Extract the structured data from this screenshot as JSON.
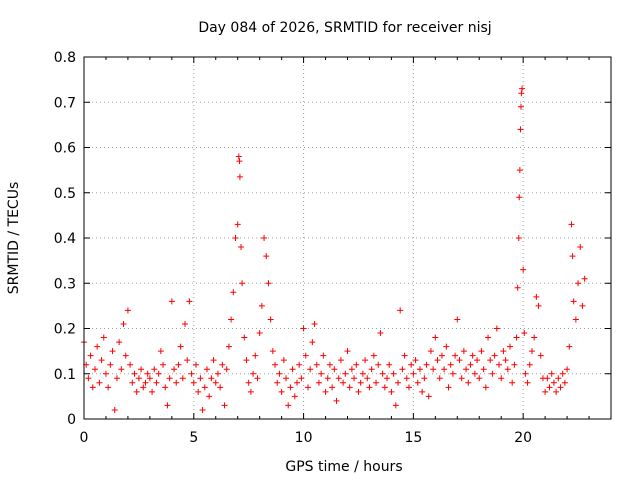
{
  "chart_data": {
    "type": "scatter",
    "title": "Day 084 of 2026, SRMTID for receiver nisj",
    "xlabel": "GPS time / hours",
    "ylabel": "SRMTID / TECUs",
    "xlim": [
      0,
      24
    ],
    "ylim": [
      0,
      0.8
    ],
    "x_ticks": [
      0,
      5,
      10,
      15,
      20
    ],
    "x_tick_labels": [
      "0",
      "5",
      "10",
      "15",
      "20"
    ],
    "y_ticks": [
      0,
      0.1,
      0.2,
      0.3,
      0.4,
      0.5,
      0.6,
      0.7,
      0.8
    ],
    "y_tick_labels": [
      "0",
      "0.1",
      "0.2",
      "0.3",
      "0.4",
      "0.5",
      "0.6",
      "0.7",
      "0.8"
    ],
    "grid": true,
    "marker": "plus",
    "marker_color": "#ff0000",
    "series": [
      {
        "name": "SRMTID",
        "points": [
          [
            0.0,
            0.17
          ],
          [
            0.1,
            0.12
          ],
          [
            0.2,
            0.09
          ],
          [
            0.3,
            0.14
          ],
          [
            0.4,
            0.07
          ],
          [
            0.5,
            0.11
          ],
          [
            0.6,
            0.16
          ],
          [
            0.7,
            0.08
          ],
          [
            0.8,
            0.13
          ],
          [
            0.9,
            0.18
          ],
          [
            1.0,
            0.1
          ],
          [
            1.1,
            0.07
          ],
          [
            1.2,
            0.12
          ],
          [
            1.3,
            0.15
          ],
          [
            1.4,
            0.02
          ],
          [
            1.5,
            0.09
          ],
          [
            1.6,
            0.17
          ],
          [
            1.7,
            0.11
          ],
          [
            1.8,
            0.21
          ],
          [
            1.9,
            0.14
          ],
          [
            2.0,
            0.24
          ],
          [
            2.1,
            0.12
          ],
          [
            2.2,
            0.08
          ],
          [
            2.3,
            0.1
          ],
          [
            2.4,
            0.06
          ],
          [
            2.5,
            0.09
          ],
          [
            2.6,
            0.11
          ],
          [
            2.7,
            0.07
          ],
          [
            2.8,
            0.08
          ],
          [
            2.9,
            0.1
          ],
          [
            3.0,
            0.09
          ],
          [
            3.1,
            0.06
          ],
          [
            3.2,
            0.11
          ],
          [
            3.3,
            0.08
          ],
          [
            3.4,
            0.1
          ],
          [
            3.5,
            0.15
          ],
          [
            3.6,
            0.12
          ],
          [
            3.7,
            0.07
          ],
          [
            3.8,
            0.03
          ],
          [
            3.9,
            0.09
          ],
          [
            4.0,
            0.26
          ],
          [
            4.1,
            0.11
          ],
          [
            4.2,
            0.08
          ],
          [
            4.3,
            0.12
          ],
          [
            4.4,
            0.16
          ],
          [
            4.5,
            0.09
          ],
          [
            4.6,
            0.21
          ],
          [
            4.7,
            0.13
          ],
          [
            4.8,
            0.26
          ],
          [
            4.9,
            0.1
          ],
          [
            5.0,
            0.08
          ],
          [
            5.1,
            0.12
          ],
          [
            5.2,
            0.06
          ],
          [
            5.3,
            0.09
          ],
          [
            5.4,
            0.02
          ],
          [
            5.5,
            0.07
          ],
          [
            5.6,
            0.11
          ],
          [
            5.7,
            0.05
          ],
          [
            5.8,
            0.09
          ],
          [
            5.9,
            0.13
          ],
          [
            6.0,
            0.08
          ],
          [
            6.1,
            0.1
          ],
          [
            6.2,
            0.07
          ],
          [
            6.3,
            0.12
          ],
          [
            6.4,
            0.03
          ],
          [
            6.5,
            0.11
          ],
          [
            6.6,
            0.16
          ],
          [
            6.7,
            0.22
          ],
          [
            6.8,
            0.28
          ],
          [
            6.9,
            0.4
          ],
          [
            7.0,
            0.43
          ],
          [
            7.05,
            0.58
          ],
          [
            7.08,
            0.57
          ],
          [
            7.1,
            0.535
          ],
          [
            7.15,
            0.38
          ],
          [
            7.2,
            0.3
          ],
          [
            7.3,
            0.18
          ],
          [
            7.4,
            0.13
          ],
          [
            7.5,
            0.08
          ],
          [
            7.6,
            0.06
          ],
          [
            7.7,
            0.1
          ],
          [
            7.8,
            0.14
          ],
          [
            7.9,
            0.09
          ],
          [
            8.0,
            0.19
          ],
          [
            8.1,
            0.25
          ],
          [
            8.2,
            0.4
          ],
          [
            8.3,
            0.36
          ],
          [
            8.4,
            0.3
          ],
          [
            8.5,
            0.22
          ],
          [
            8.6,
            0.15
          ],
          [
            8.7,
            0.12
          ],
          [
            8.8,
            0.08
          ],
          [
            8.9,
            0.1
          ],
          [
            9.0,
            0.06
          ],
          [
            9.1,
            0.13
          ],
          [
            9.2,
            0.09
          ],
          [
            9.3,
            0.03
          ],
          [
            9.4,
            0.07
          ],
          [
            9.5,
            0.11
          ],
          [
            9.6,
            0.05
          ],
          [
            9.7,
            0.08
          ],
          [
            9.8,
            0.12
          ],
          [
            9.9,
            0.09
          ],
          [
            10.0,
            0.2
          ],
          [
            10.1,
            0.14
          ],
          [
            10.2,
            0.07
          ],
          [
            10.3,
            0.11
          ],
          [
            10.4,
            0.17
          ],
          [
            10.5,
            0.21
          ],
          [
            10.6,
            0.12
          ],
          [
            10.7,
            0.08
          ],
          [
            10.8,
            0.1
          ],
          [
            10.9,
            0.14
          ],
          [
            11.0,
            0.06
          ],
          [
            11.1,
            0.09
          ],
          [
            11.2,
            0.12
          ],
          [
            11.3,
            0.07
          ],
          [
            11.4,
            0.11
          ],
          [
            11.5,
            0.04
          ],
          [
            11.6,
            0.09
          ],
          [
            11.7,
            0.13
          ],
          [
            11.8,
            0.08
          ],
          [
            11.9,
            0.1
          ],
          [
            12.0,
            0.15
          ],
          [
            12.1,
            0.07
          ],
          [
            12.2,
            0.11
          ],
          [
            12.3,
            0.09
          ],
          [
            12.4,
            0.12
          ],
          [
            12.5,
            0.06
          ],
          [
            12.6,
            0.08
          ],
          [
            12.7,
            0.1
          ],
          [
            12.8,
            0.13
          ],
          [
            12.9,
            0.09
          ],
          [
            13.0,
            0.07
          ],
          [
            13.1,
            0.11
          ],
          [
            13.2,
            0.14
          ],
          [
            13.3,
            0.08
          ],
          [
            13.4,
            0.12
          ],
          [
            13.5,
            0.19
          ],
          [
            13.6,
            0.1
          ],
          [
            13.7,
            0.07
          ],
          [
            13.8,
            0.09
          ],
          [
            13.9,
            0.12
          ],
          [
            14.0,
            0.06
          ],
          [
            14.1,
            0.1
          ],
          [
            14.2,
            0.03
          ],
          [
            14.3,
            0.08
          ],
          [
            14.4,
            0.24
          ],
          [
            14.5,
            0.11
          ],
          [
            14.6,
            0.14
          ],
          [
            14.7,
            0.09
          ],
          [
            14.8,
            0.07
          ],
          [
            14.9,
            0.12
          ],
          [
            15.0,
            0.1
          ],
          [
            15.1,
            0.13
          ],
          [
            15.2,
            0.08
          ],
          [
            15.3,
            0.11
          ],
          [
            15.4,
            0.06
          ],
          [
            15.5,
            0.09
          ],
          [
            15.6,
            0.12
          ],
          [
            15.7,
            0.05
          ],
          [
            15.8,
            0.15
          ],
          [
            15.9,
            0.11
          ],
          [
            16.0,
            0.18
          ],
          [
            16.1,
            0.13
          ],
          [
            16.2,
            0.09
          ],
          [
            16.3,
            0.14
          ],
          [
            16.4,
            0.11
          ],
          [
            16.5,
            0.16
          ],
          [
            16.6,
            0.07
          ],
          [
            16.7,
            0.12
          ],
          [
            16.8,
            0.1
          ],
          [
            16.9,
            0.14
          ],
          [
            17.0,
            0.22
          ],
          [
            17.1,
            0.13
          ],
          [
            17.2,
            0.09
          ],
          [
            17.3,
            0.15
          ],
          [
            17.4,
            0.11
          ],
          [
            17.5,
            0.08
          ],
          [
            17.6,
            0.12
          ],
          [
            17.7,
            0.14
          ],
          [
            17.8,
            0.1
          ],
          [
            17.9,
            0.13
          ],
          [
            18.0,
            0.09
          ],
          [
            18.1,
            0.15
          ],
          [
            18.2,
            0.11
          ],
          [
            18.3,
            0.07
          ],
          [
            18.4,
            0.18
          ],
          [
            18.5,
            0.13
          ],
          [
            18.6,
            0.1
          ],
          [
            18.7,
            0.14
          ],
          [
            18.8,
            0.2
          ],
          [
            18.9,
            0.12
          ],
          [
            19.0,
            0.09
          ],
          [
            19.1,
            0.15
          ],
          [
            19.2,
            0.13
          ],
          [
            19.3,
            0.11
          ],
          [
            19.4,
            0.16
          ],
          [
            19.5,
            0.08
          ],
          [
            19.6,
            0.12
          ],
          [
            19.7,
            0.18
          ],
          [
            19.75,
            0.29
          ],
          [
            19.8,
            0.4
          ],
          [
            19.82,
            0.49
          ],
          [
            19.85,
            0.55
          ],
          [
            19.88,
            0.64
          ],
          [
            19.9,
            0.69
          ],
          [
            19.92,
            0.72
          ],
          [
            19.95,
            0.73
          ],
          [
            20.0,
            0.33
          ],
          [
            20.05,
            0.19
          ],
          [
            20.1,
            0.1
          ],
          [
            20.2,
            0.08
          ],
          [
            20.3,
            0.12
          ],
          [
            20.4,
            0.15
          ],
          [
            20.5,
            0.18
          ],
          [
            20.6,
            0.27
          ],
          [
            20.7,
            0.25
          ],
          [
            20.8,
            0.14
          ],
          [
            20.9,
            0.09
          ],
          [
            21.0,
            0.06
          ],
          [
            21.1,
            0.09
          ],
          [
            21.2,
            0.07
          ],
          [
            21.3,
            0.1
          ],
          [
            21.4,
            0.08
          ],
          [
            21.5,
            0.06
          ],
          [
            21.6,
            0.09
          ],
          [
            21.7,
            0.07
          ],
          [
            21.8,
            0.1
          ],
          [
            21.9,
            0.08
          ],
          [
            22.0,
            0.11
          ],
          [
            22.1,
            0.16
          ],
          [
            22.2,
            0.43
          ],
          [
            22.25,
            0.36
          ],
          [
            22.3,
            0.26
          ],
          [
            22.4,
            0.22
          ],
          [
            22.5,
            0.3
          ],
          [
            22.6,
            0.38
          ],
          [
            22.7,
            0.25
          ],
          [
            22.8,
            0.31
          ]
        ]
      }
    ]
  }
}
